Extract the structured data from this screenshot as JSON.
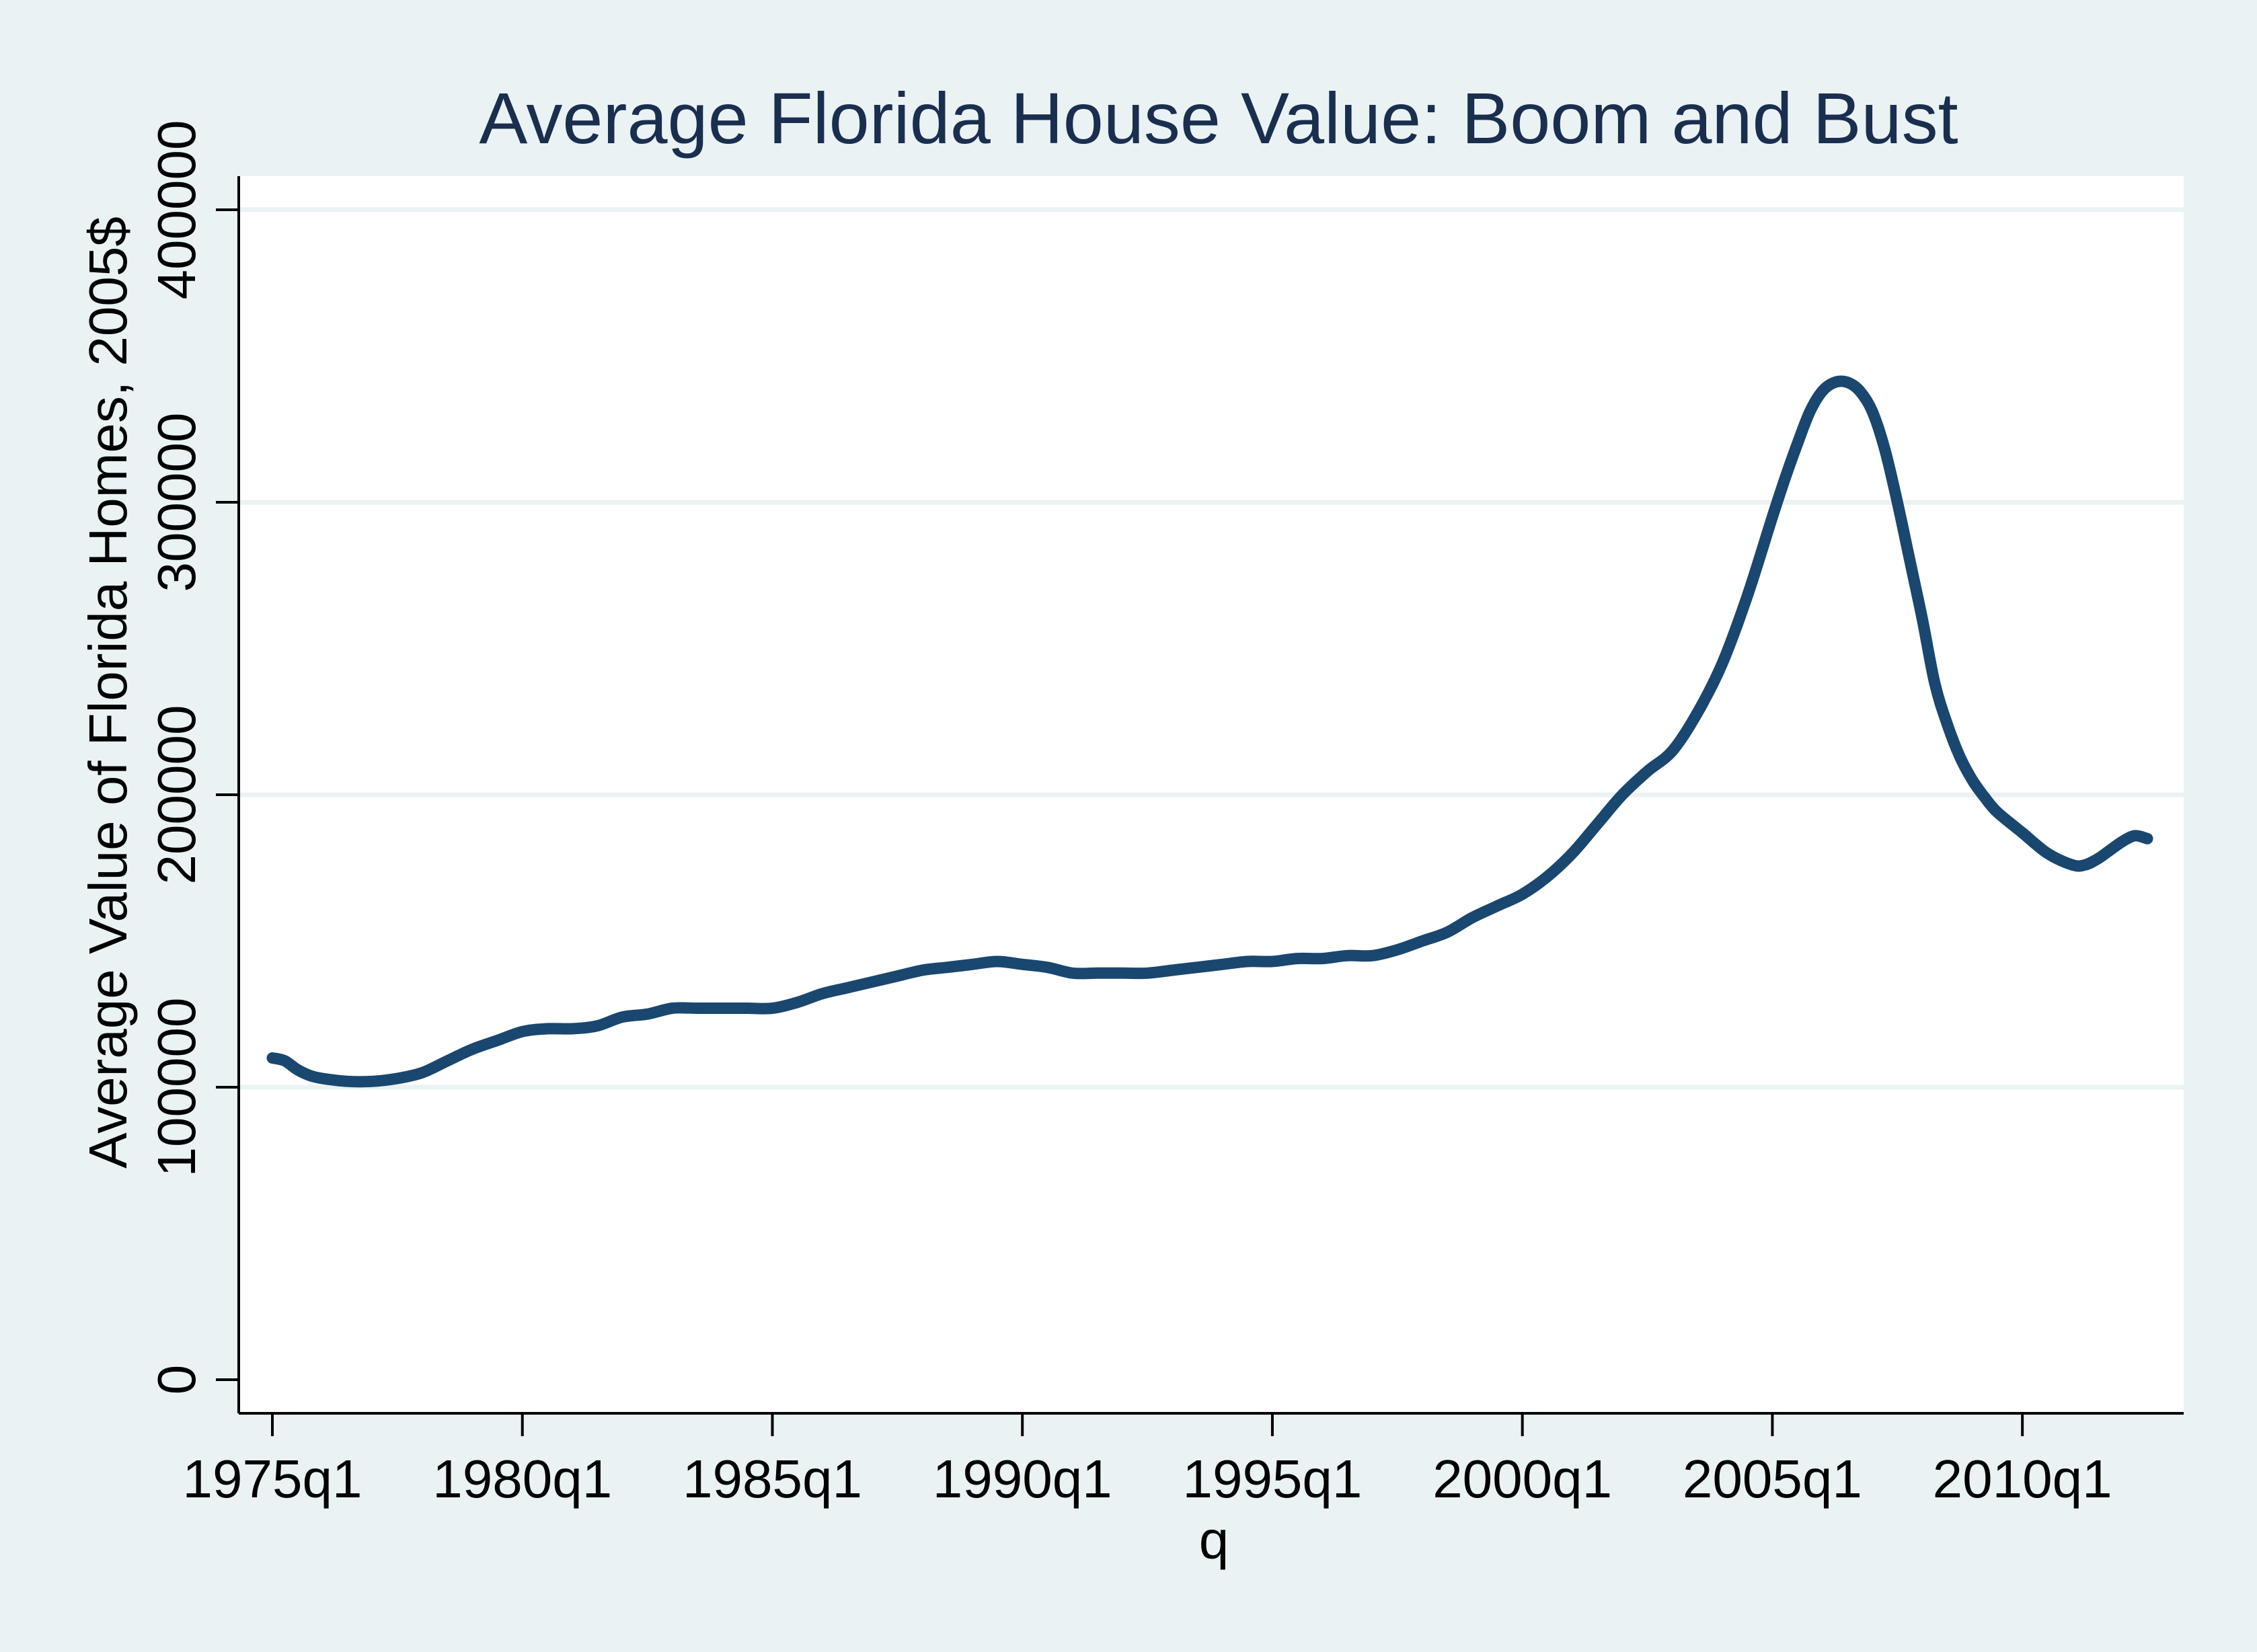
{
  "chart_data": {
    "type": "line",
    "title": "Average Florida House Value:  Boom and Bust",
    "xlabel": "q",
    "ylabel": "Average Value of Florida  Homes, 2005$",
    "x_tick_labels": [
      "1975q1",
      "1980q1",
      "1985q1",
      "1990q1",
      "1995q1",
      "2000q1",
      "2005q1",
      "2010q1"
    ],
    "y_tick_labels": [
      "0",
      "100000",
      "200000",
      "300000",
      "400000"
    ],
    "ylim": [
      0,
      400000
    ],
    "xlim": [
      1975.0,
      2012.5
    ],
    "grid": "horizontal",
    "colors": {
      "line": "#1a476f",
      "grid": "#eaf2f3",
      "plot_bg": "#ffffff",
      "outer_bg": "#eaf2f3",
      "title": "#1a2e4f"
    },
    "series": [
      {
        "x": [
          1975.0,
          1975.25,
          1975.5,
          1975.75,
          1976.0,
          1976.5,
          1977.0,
          1977.5,
          1978.0,
          1978.5,
          1979.0,
          1979.5,
          1980.0,
          1980.5,
          1981.0,
          1981.5,
          1982.0,
          1982.5,
          1983.0,
          1983.5,
          1984.0,
          1984.5,
          1985.0,
          1985.5,
          1986.0,
          1986.5,
          1987.0,
          1987.5,
          1988.0,
          1988.5,
          1989.0,
          1989.5,
          1990.0,
          1990.5,
          1991.0,
          1991.5,
          1992.0,
          1992.5,
          1993.0,
          1993.5,
          1994.0,
          1994.5,
          1995.0,
          1995.5,
          1996.0,
          1996.5,
          1997.0,
          1997.5,
          1998.0,
          1998.5,
          1999.0,
          1999.5,
          2000.0,
          2000.5,
          2001.0,
          2001.5,
          2002.0,
          2002.5,
          2003.0,
          2003.5,
          2004.0,
          2004.5,
          2005.0,
          2005.25,
          2005.5,
          2005.75,
          2006.0,
          2006.25,
          2006.5,
          2006.75,
          2007.0,
          2007.25,
          2007.5,
          2007.75,
          2008.0,
          2008.25,
          2008.5,
          2008.75,
          2009.0,
          2009.25,
          2009.5,
          2010.0,
          2010.5,
          2011.0,
          2011.25,
          2011.5,
          2011.75,
          2012.0,
          2012.25,
          2012.5
        ],
        "y": [
          110000,
          109000,
          106000,
          104000,
          103000,
          102000,
          102000,
          103000,
          105000,
          109000,
          113000,
          116000,
          119000,
          120000,
          120000,
          121000,
          124000,
          125000,
          127000,
          127000,
          127000,
          127000,
          127000,
          129000,
          132000,
          134000,
          136000,
          138000,
          140000,
          141000,
          142000,
          143000,
          142000,
          141000,
          139000,
          139000,
          139000,
          139000,
          140000,
          141000,
          142000,
          143000,
          143000,
          144000,
          144000,
          145000,
          145000,
          147000,
          150000,
          153000,
          158000,
          162000,
          166000,
          172000,
          180000,
          190000,
          200000,
          208000,
          215000,
          228000,
          245000,
          268000,
          295000,
          308000,
          320000,
          331000,
          338000,
          341000,
          341000,
          338000,
          331000,
          318000,
          300000,
          280000,
          260000,
          238000,
          224000,
          213000,
          205000,
          199000,
          194000,
          187000,
          180000,
          176000,
          176000,
          178000,
          181000,
          184000,
          186000,
          185000
        ]
      }
    ]
  }
}
